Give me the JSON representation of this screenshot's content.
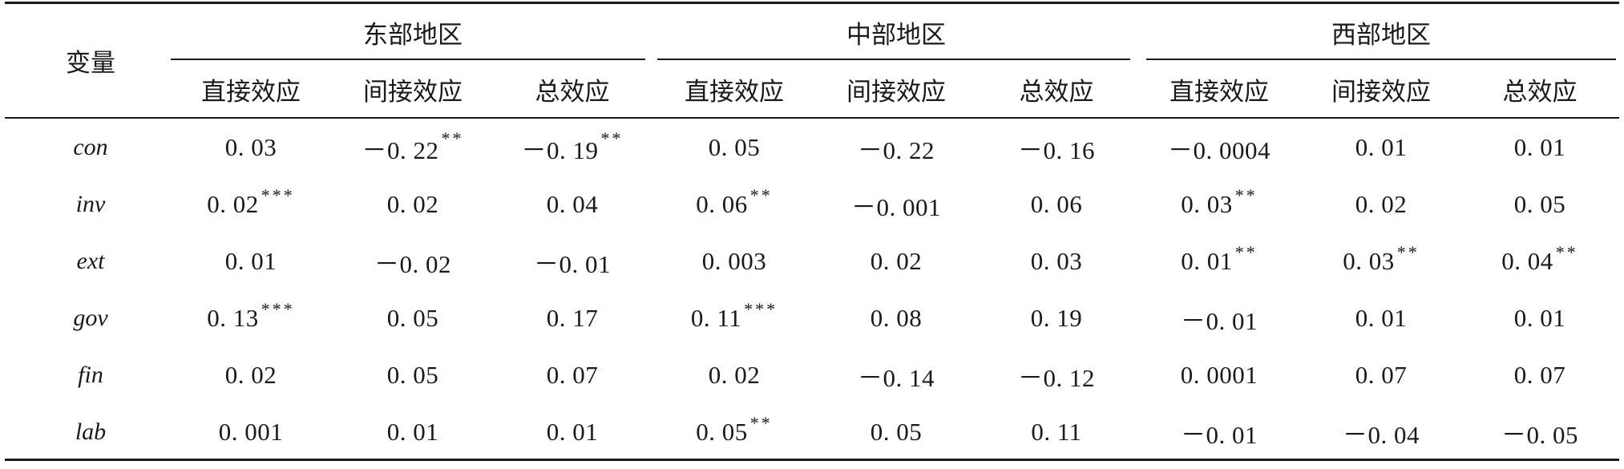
{
  "table": {
    "row_header_label": "变量",
    "region_groups": [
      "东部地区",
      "中部地区",
      "西部地区"
    ],
    "sub_headers": [
      "直接效应",
      "间接效应",
      "总效应",
      "直接效应",
      "间接效应",
      "总效应",
      "直接效应",
      "间接效应",
      "总效应"
    ],
    "rows": [
      {
        "variable": "con",
        "cells": [
          {
            "v": "0. 03",
            "s": ""
          },
          {
            "v": "－0. 22",
            "s": "**"
          },
          {
            "v": "－0. 19",
            "s": "**"
          },
          {
            "v": "0. 05",
            "s": ""
          },
          {
            "v": "－0. 22",
            "s": ""
          },
          {
            "v": "－0. 16",
            "s": ""
          },
          {
            "v": "－0. 0004",
            "s": ""
          },
          {
            "v": "0. 01",
            "s": ""
          },
          {
            "v": "0. 01",
            "s": ""
          }
        ]
      },
      {
        "variable": "inv",
        "cells": [
          {
            "v": "0. 02",
            "s": "***"
          },
          {
            "v": "0. 02",
            "s": ""
          },
          {
            "v": "0. 04",
            "s": ""
          },
          {
            "v": "0. 06",
            "s": "**"
          },
          {
            "v": "－0. 001",
            "s": ""
          },
          {
            "v": "0. 06",
            "s": ""
          },
          {
            "v": "0. 03",
            "s": "**"
          },
          {
            "v": "0. 02",
            "s": ""
          },
          {
            "v": "0. 05",
            "s": ""
          }
        ]
      },
      {
        "variable": "ext",
        "cells": [
          {
            "v": "0. 01",
            "s": ""
          },
          {
            "v": "－0. 02",
            "s": ""
          },
          {
            "v": "－0. 01",
            "s": ""
          },
          {
            "v": "0. 003",
            "s": ""
          },
          {
            "v": "0. 02",
            "s": ""
          },
          {
            "v": "0. 03",
            "s": ""
          },
          {
            "v": "0. 01",
            "s": "**"
          },
          {
            "v": "0. 03",
            "s": "**"
          },
          {
            "v": "0. 04",
            "s": "**"
          }
        ]
      },
      {
        "variable": "gov",
        "cells": [
          {
            "v": "0. 13",
            "s": "***"
          },
          {
            "v": "0. 05",
            "s": ""
          },
          {
            "v": "0. 17",
            "s": ""
          },
          {
            "v": "0. 11",
            "s": "***"
          },
          {
            "v": "0. 08",
            "s": ""
          },
          {
            "v": "0. 19",
            "s": ""
          },
          {
            "v": "－0. 01",
            "s": ""
          },
          {
            "v": "0. 01",
            "s": ""
          },
          {
            "v": "0. 01",
            "s": ""
          }
        ]
      },
      {
        "variable": "fin",
        "cells": [
          {
            "v": "0. 02",
            "s": ""
          },
          {
            "v": "0. 05",
            "s": ""
          },
          {
            "v": "0. 07",
            "s": ""
          },
          {
            "v": "0. 02",
            "s": ""
          },
          {
            "v": "－0. 14",
            "s": ""
          },
          {
            "v": "－0. 12",
            "s": ""
          },
          {
            "v": "0. 0001",
            "s": ""
          },
          {
            "v": "0. 07",
            "s": ""
          },
          {
            "v": "0. 07",
            "s": ""
          }
        ]
      },
      {
        "variable": "lab",
        "cells": [
          {
            "v": "0. 001",
            "s": ""
          },
          {
            "v": "0. 01",
            "s": ""
          },
          {
            "v": "0. 01",
            "s": ""
          },
          {
            "v": "0. 05",
            "s": "**"
          },
          {
            "v": "0. 05",
            "s": ""
          },
          {
            "v": "0. 11",
            "s": ""
          },
          {
            "v": "－0. 01",
            "s": ""
          },
          {
            "v": "－0. 04",
            "s": ""
          },
          {
            "v": "－0. 05",
            "s": ""
          }
        ]
      }
    ]
  }
}
